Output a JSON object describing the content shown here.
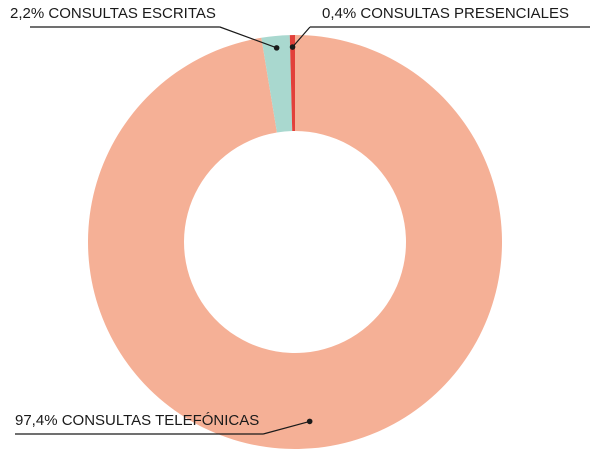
{
  "chart_data": {
    "type": "donut",
    "categories": [
      "CONSULTAS TELEFÓNICAS",
      "CONSULTAS ESCRITAS",
      "CONSULTAS PRESENCIALES"
    ],
    "values": [
      97.4,
      2.2,
      0.4
    ],
    "value_labels": [
      "97,4%",
      "2,2%",
      "0,4% "
    ],
    "colors": [
      "#f5b096",
      "#a9d8cf",
      "#e2403a"
    ]
  }
}
